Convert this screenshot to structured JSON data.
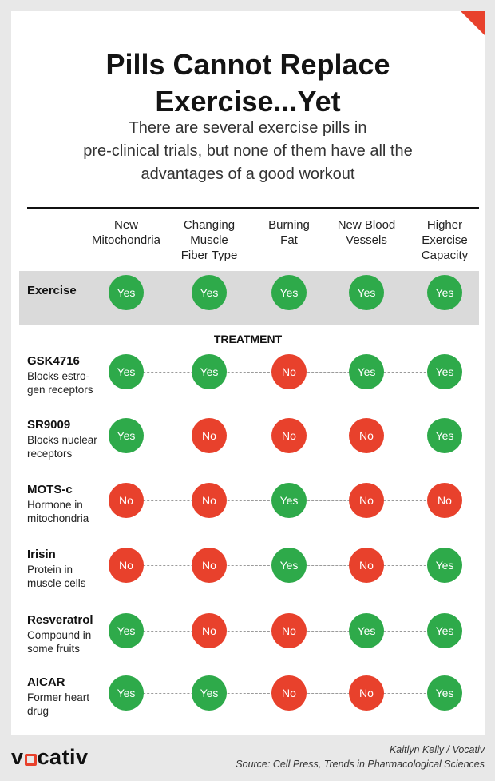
{
  "title_line1": "Pills Cannot Replace",
  "title_line2": "Exercise...Yet",
  "subtitle_line1": "There are several exercise pills in",
  "subtitle_line2": "pre-clinical trials, but none of them have all the",
  "subtitle_line3": "advantages of a good workout",
  "columns": [
    {
      "line1": "New",
      "line2": "Mitochondria",
      "line3": ""
    },
    {
      "line1": "Changing",
      "line2": "Muscle",
      "line3": "Fiber Type"
    },
    {
      "line1": "Burning",
      "line2": "Fat",
      "line3": ""
    },
    {
      "line1": "New Blood",
      "line2": "Vessels",
      "line3": ""
    },
    {
      "line1": "Higher",
      "line2": "Exercise",
      "line3": "Capacity"
    }
  ],
  "section_label": "TREATMENT",
  "rows": [
    {
      "name": "Exercise",
      "desc1": "",
      "desc2": "",
      "values": [
        "Yes",
        "Yes",
        "Yes",
        "Yes",
        "Yes"
      ]
    },
    {
      "name": "GSK4716",
      "desc1": "Blocks estro-",
      "desc2": "gen receptors",
      "values": [
        "Yes",
        "Yes",
        "No",
        "Yes",
        "Yes"
      ]
    },
    {
      "name": "SR9009",
      "desc1": "Blocks nuclear",
      "desc2": "receptors",
      "values": [
        "Yes",
        "No",
        "No",
        "No",
        "Yes"
      ]
    },
    {
      "name": "MOTS-c",
      "desc1": "Hormone in",
      "desc2": "mitochondria",
      "values": [
        "No",
        "No",
        "Yes",
        "No",
        "No"
      ]
    },
    {
      "name": "Irisin",
      "desc1": "Protein in",
      "desc2": "muscle cells",
      "values": [
        "No",
        "No",
        "Yes",
        "No",
        "Yes"
      ]
    },
    {
      "name": "Resveratrol",
      "desc1": "Compound in",
      "desc2": "some fruits",
      "values": [
        "Yes",
        "No",
        "No",
        "Yes",
        "Yes"
      ]
    },
    {
      "name": "AICAR",
      "desc1": "Former heart",
      "desc2": "drug",
      "values": [
        "Yes",
        "Yes",
        "No",
        "No",
        "Yes"
      ]
    }
  ],
  "logo_text_left": "v",
  "logo_text_right": "cativ",
  "credit_line1": "Kaitlyn Kelly / Vocativ",
  "credit_line2": "Source: Cell Press, Trends in Pharmacological Sciences",
  "colors": {
    "yes": "#2eaa4a",
    "no": "#e8412c",
    "accent": "#e8412c"
  }
}
